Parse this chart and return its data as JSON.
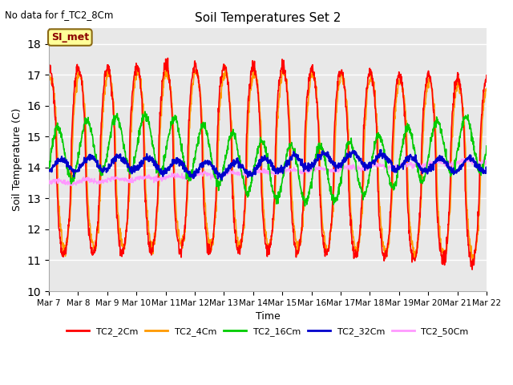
{
  "title": "Soil Temperatures Set 2",
  "subtitle": "No data for f_TC2_8Cm",
  "xlabel": "Time",
  "ylabel": "Soil Temperature (C)",
  "ylim": [
    10.0,
    18.5
  ],
  "yticks": [
    10.0,
    11.0,
    12.0,
    13.0,
    14.0,
    15.0,
    16.0,
    17.0,
    18.0
  ],
  "legend_label": "SI_met",
  "series_colors": {
    "TC2_2Cm": "#ff0000",
    "TC2_4Cm": "#ff9900",
    "TC2_16Cm": "#00cc00",
    "TC2_32Cm": "#0000cc",
    "TC2_50Cm": "#ff99ff"
  },
  "plot_bg_color": "#e8e8e8",
  "fig_bg_color": "#ffffff",
  "grid_color": "#ffffff"
}
